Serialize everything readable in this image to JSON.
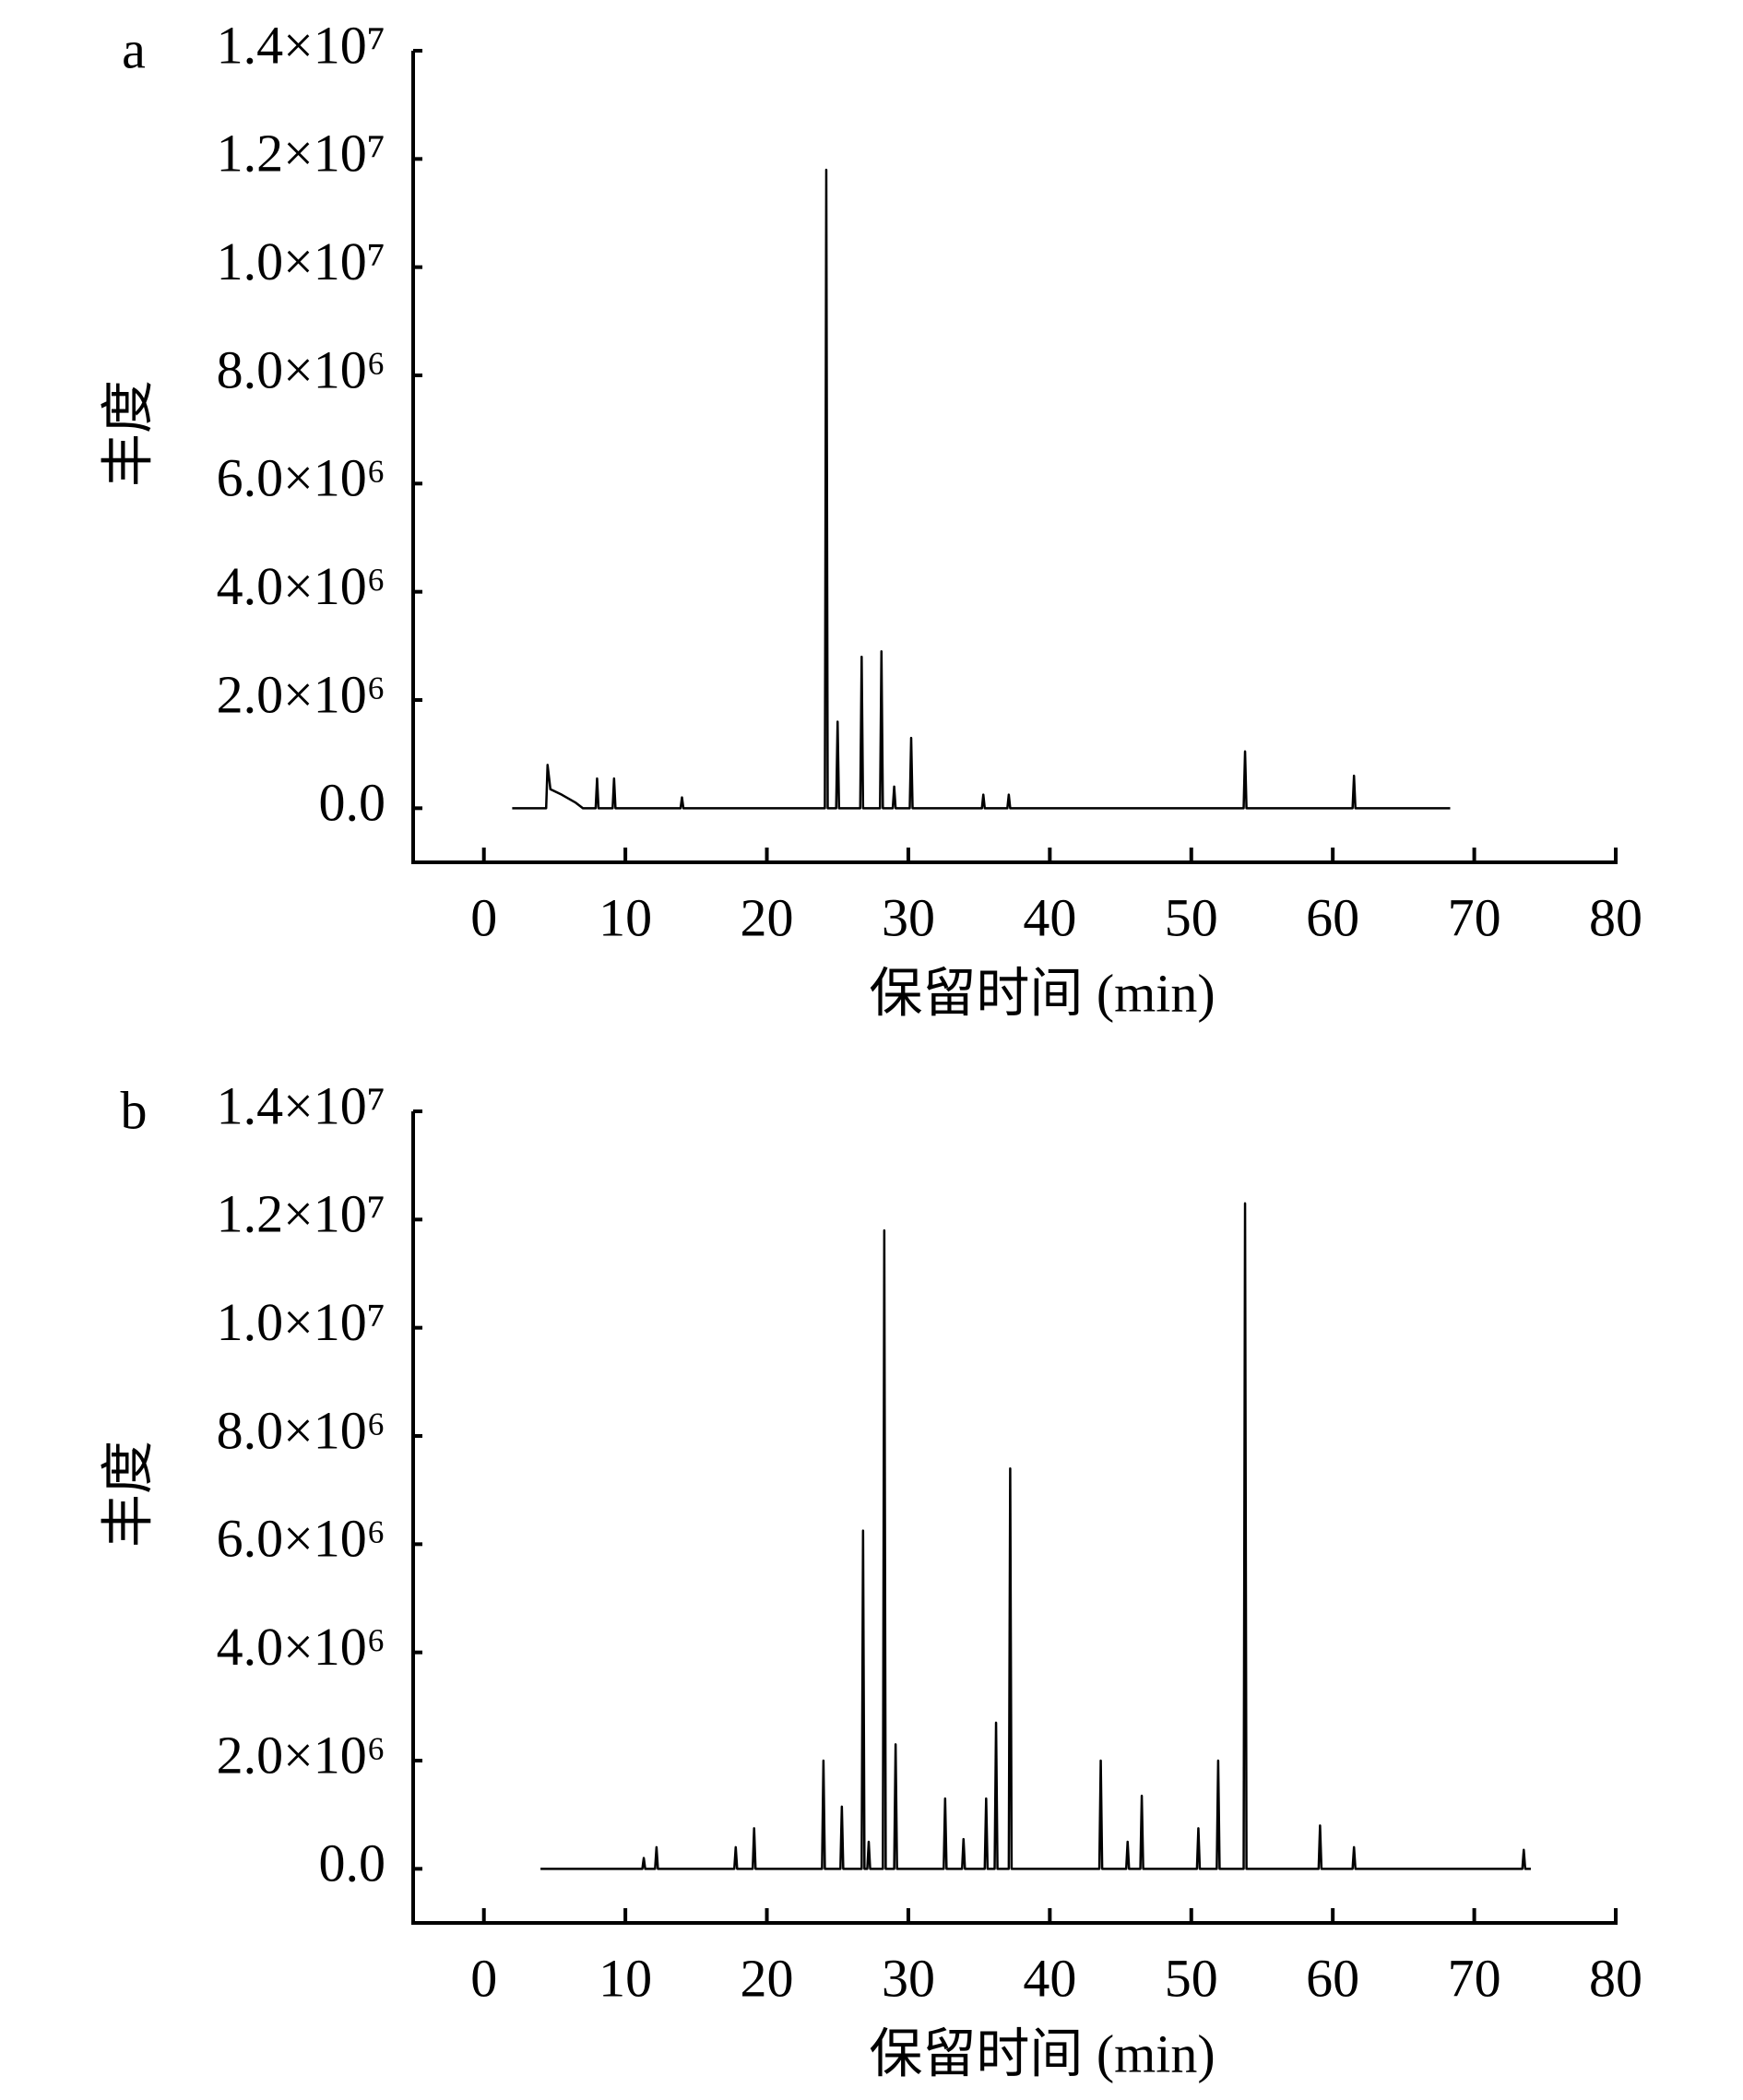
{
  "chart_data": [
    {
      "type": "line",
      "panel": "a",
      "xlabel": "保留时间 (min)",
      "ylabel": "丰度",
      "color": "#000000",
      "xlim": [
        -5,
        80
      ],
      "xticks": [
        0,
        10,
        20,
        30,
        40,
        50,
        60,
        70,
        80
      ],
      "ylim": [
        -1000000,
        14000000
      ],
      "yticks": [
        {
          "value": 0,
          "label": "0.0"
        },
        {
          "value": 2000000,
          "label": "2.0×10⁶"
        },
        {
          "value": 4000000,
          "label": "4.0×10⁶"
        },
        {
          "value": 6000000,
          "label": "6.0×10⁶"
        },
        {
          "value": 8000000,
          "label": "8.0×10⁶"
        },
        {
          "value": 10000000,
          "label": "1.0×10⁷"
        },
        {
          "value": 12000000,
          "label": "1.2×10⁷"
        },
        {
          "value": 14000000,
          "label": "1.4×10⁷"
        }
      ],
      "x": [
        2,
        4.4,
        4.5,
        4.7,
        5.5,
        6.5,
        7,
        7.9,
        8,
        8.1,
        9.1,
        9.2,
        9.3,
        13.9,
        14,
        14.1,
        24.1,
        24.2,
        24.3,
        24.9,
        25,
        25.1,
        26.6,
        26.7,
        26.8,
        28,
        28.1,
        28.2,
        28.9,
        29,
        29.1,
        30.1,
        30.2,
        30.3,
        35.2,
        35.3,
        35.4,
        37,
        37.1,
        37.2,
        53.7,
        53.8,
        53.9,
        61.4,
        61.5,
        61.6,
        68.3
      ],
      "values": [
        0,
        0,
        800000,
        350000,
        250000,
        100000,
        0,
        0,
        550000,
        0,
        0,
        550000,
        0,
        0,
        200000,
        0,
        0,
        11800000,
        0,
        0,
        1600000,
        0,
        0,
        2800000,
        0,
        0,
        2900000,
        0,
        0,
        400000,
        0,
        0,
        1300000,
        0,
        0,
        250000,
        0,
        0,
        250000,
        0,
        0,
        1050000,
        0,
        0,
        600000,
        0,
        0
      ]
    },
    {
      "type": "line",
      "panel": "b",
      "xlabel": "保留时间 (min)",
      "ylabel": "丰度",
      "color": "#000000",
      "xlim": [
        -5,
        80
      ],
      "xticks": [
        0,
        10,
        20,
        30,
        40,
        50,
        60,
        70,
        80
      ],
      "ylim": [
        -1000000,
        14000000
      ],
      "yticks": [
        {
          "value": 0,
          "label": "0.0"
        },
        {
          "value": 2000000,
          "label": "2.0×10⁶"
        },
        {
          "value": 4000000,
          "label": "4.0×10⁶"
        },
        {
          "value": 6000000,
          "label": "6.0×10⁶"
        },
        {
          "value": 8000000,
          "label": "8.0×10⁶"
        },
        {
          "value": 10000000,
          "label": "1.0×10⁷"
        },
        {
          "value": 12000000,
          "label": "1.2×10⁷"
        },
        {
          "value": 14000000,
          "label": "1.4×10⁷"
        }
      ],
      "x": [
        4,
        11.2,
        11.3,
        11.4,
        12.1,
        12.2,
        12.3,
        17.7,
        17.8,
        17.9,
        19,
        19.1,
        19.2,
        23.9,
        24,
        24.1,
        25.2,
        25.3,
        25.4,
        26.7,
        26.8,
        26.9,
        27.1,
        27.2,
        27.3,
        28.2,
        28.3,
        28.4,
        29,
        29.1,
        29.2,
        32.5,
        32.6,
        32.7,
        33.8,
        33.9,
        34,
        35.4,
        35.5,
        35.6,
        36.1,
        36.2,
        36.3,
        37.1,
        37.2,
        37.3,
        43.5,
        43.6,
        43.7,
        45.4,
        45.5,
        45.6,
        46.4,
        46.5,
        46.6,
        50.4,
        50.5,
        50.6,
        51.8,
        51.9,
        52,
        53.7,
        53.8,
        53.9,
        59,
        59.1,
        59.2,
        61.4,
        61.5,
        61.6,
        73.4,
        73.5,
        73.6,
        74
      ],
      "values": [
        0,
        0,
        200000,
        0,
        0,
        400000,
        0,
        0,
        400000,
        0,
        0,
        750000,
        0,
        0,
        2000000,
        0,
        0,
        1150000,
        0,
        0,
        6250000,
        0,
        0,
        500000,
        0,
        0,
        11800000,
        0,
        0,
        2300000,
        0,
        0,
        1300000,
        0,
        0,
        550000,
        0,
        0,
        1300000,
        0,
        0,
        2700000,
        0,
        0,
        7400000,
        0,
        0,
        2000000,
        0,
        0,
        500000,
        0,
        0,
        1350000,
        0,
        0,
        750000,
        0,
        0,
        2000000,
        0,
        0,
        12300000,
        0,
        0,
        800000,
        0,
        0,
        400000,
        0,
        0,
        350000,
        0,
        0
      ]
    }
  ]
}
